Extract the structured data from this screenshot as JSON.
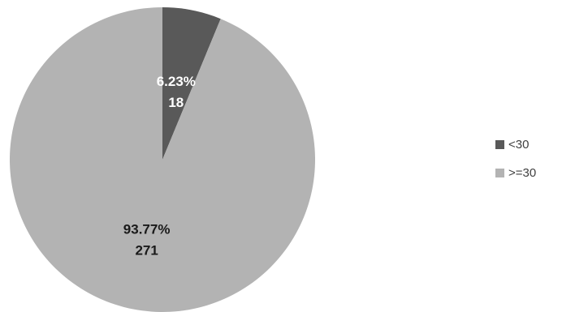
{
  "chart_data": {
    "type": "pie",
    "slices": [
      {
        "label": "<30",
        "value": 18,
        "percent": "6.23%",
        "count": "18",
        "color": "#595959",
        "text_color": "#ffffff"
      },
      {
        "label": ">=30",
        "value": 271,
        "percent": "93.77%",
        "count": "271",
        "color": "#b3b3b3",
        "text_color": "#1a1a1a"
      }
    ],
    "start_angle_deg": 0,
    "direction": "clockwise",
    "legend_position": "right"
  }
}
